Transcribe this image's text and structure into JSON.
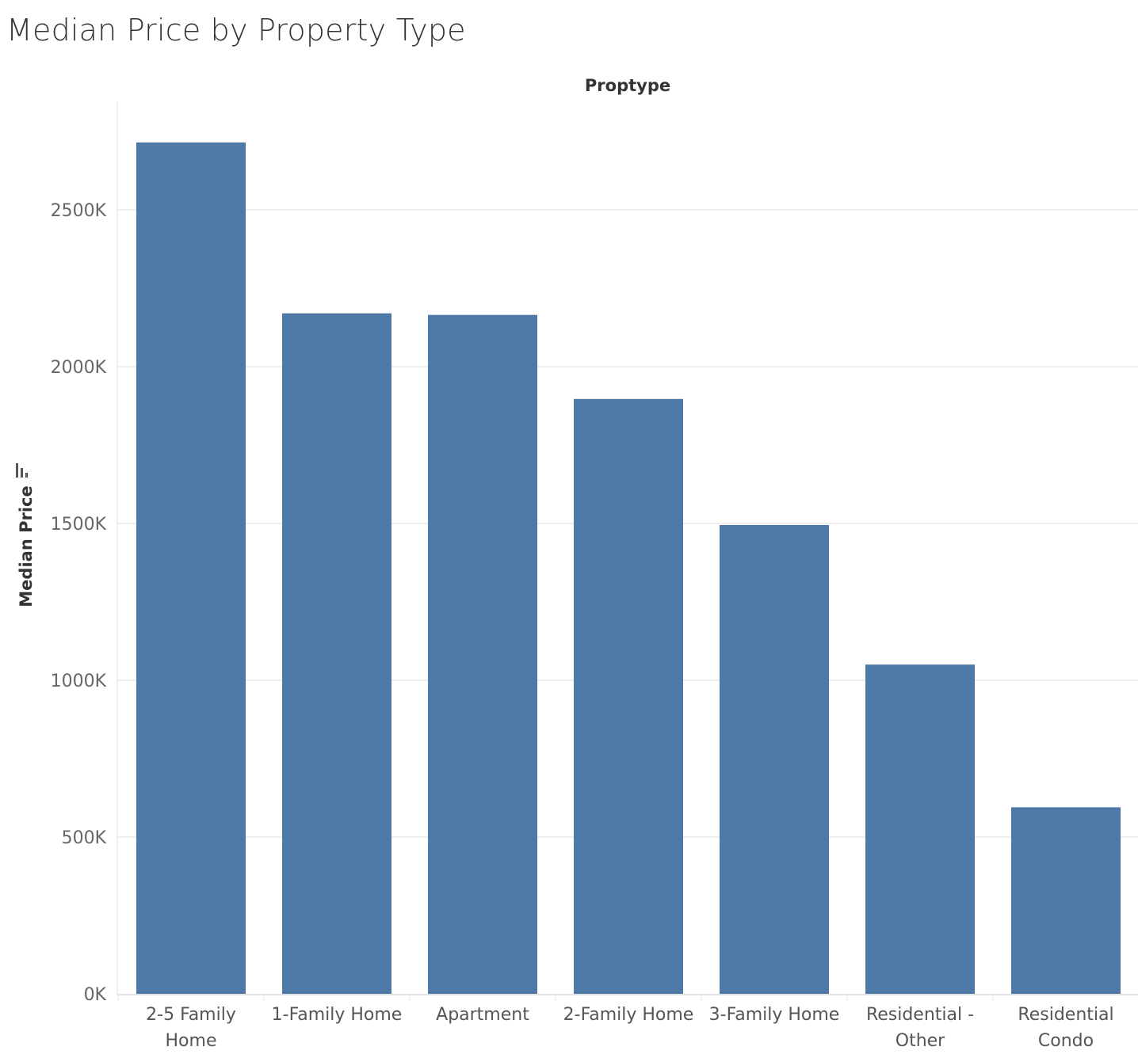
{
  "chart_data": {
    "type": "bar",
    "title": "Median Price by Property Type",
    "xlabel": "Proptype",
    "ylabel": "Median Price",
    "sort_icon": "sort-descending-icon",
    "categories": [
      [
        "2-5 Family",
        "Home"
      ],
      [
        "1-Family Home"
      ],
      [
        "Apartment"
      ],
      [
        "2-Family Home"
      ],
      [
        "3-Family Home"
      ],
      [
        "Residential -",
        "Other"
      ],
      [
        "Residential",
        "Condo"
      ]
    ],
    "values": [
      2715,
      2170,
      2165,
      1897,
      1495,
      1050,
      595
    ],
    "value_unit": "K",
    "ylim": [
      0,
      2850
    ],
    "yticks": [
      0,
      500,
      1000,
      1500,
      2000,
      2500
    ],
    "ytick_labels": [
      "0K",
      "500K",
      "1000K",
      "1500K",
      "2000K",
      "2500K"
    ],
    "bar_color": "#4e79a7",
    "grid": true,
    "gridline_color": "#eeeeee"
  }
}
